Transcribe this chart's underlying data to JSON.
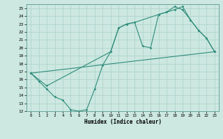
{
  "xlabel": "Humidex (Indice chaleur)",
  "xlim": [
    -0.5,
    23.5
  ],
  "ylim": [
    12,
    25.5
  ],
  "xticks": [
    0,
    1,
    2,
    3,
    4,
    5,
    6,
    7,
    8,
    9,
    10,
    11,
    12,
    13,
    14,
    15,
    16,
    17,
    18,
    19,
    20,
    21,
    22,
    23
  ],
  "yticks": [
    12,
    13,
    14,
    15,
    16,
    17,
    18,
    19,
    20,
    21,
    22,
    23,
    24,
    25
  ],
  "line_color": "#2e8b7a",
  "bg_color": "#cce8e0",
  "grid_color": "#b0d4cc",
  "line1_x": [
    0,
    1,
    2,
    3,
    4,
    5,
    6,
    7,
    8,
    9,
    10,
    11,
    12,
    13,
    14,
    15,
    16,
    17,
    18,
    19,
    20,
    21,
    22,
    23
  ],
  "line1_y": [
    16.8,
    15.8,
    14.8,
    13.8,
    13.4,
    12.2,
    12.0,
    12.2,
    14.8,
    17.8,
    19.5,
    22.5,
    23.0,
    23.2,
    20.2,
    20.0,
    24.2,
    24.5,
    24.8,
    25.2,
    23.5,
    22.2,
    21.2,
    19.5
  ],
  "line2_x": [
    0,
    2,
    10,
    11,
    12,
    13,
    16,
    17,
    18,
    19,
    20,
    21,
    22,
    23
  ],
  "line2_y": [
    16.8,
    15.2,
    19.5,
    22.5,
    23.0,
    23.2,
    24.2,
    24.5,
    25.2,
    24.8,
    23.5,
    22.2,
    21.2,
    19.5
  ],
  "line3_x": [
    0,
    23
  ],
  "line3_y": [
    16.8,
    19.5
  ]
}
